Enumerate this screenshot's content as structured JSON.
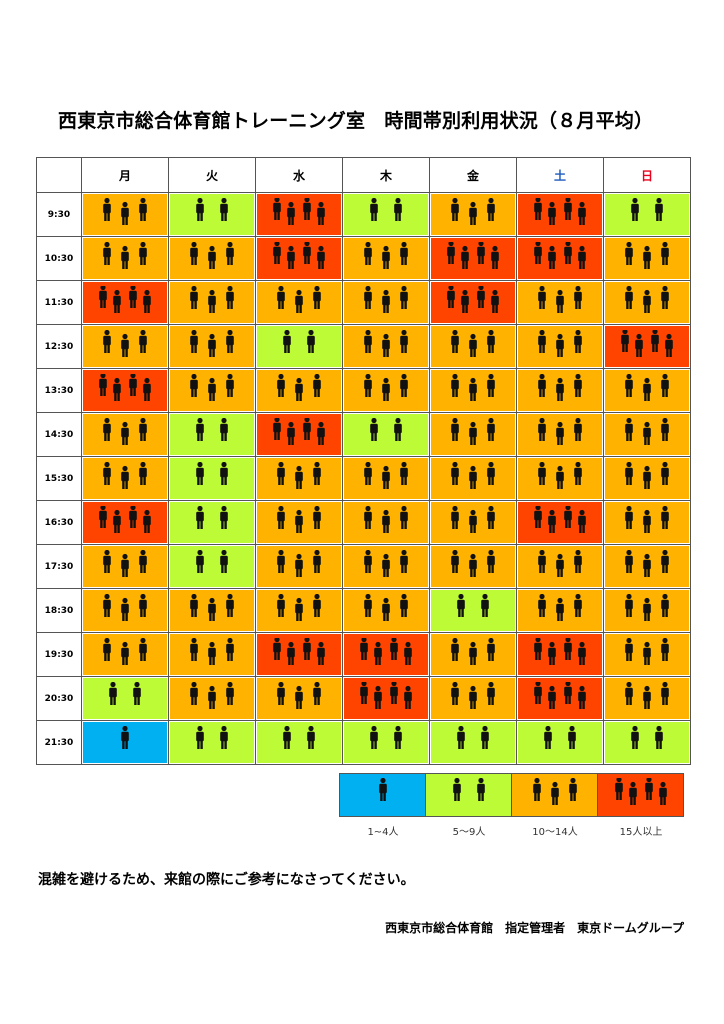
{
  "title": "西東京市総合体育館トレーニング室　時間帯別利用状況（８月平均）",
  "days": [
    {
      "label": "月"
    },
    {
      "label": "火"
    },
    {
      "label": "水"
    },
    {
      "label": "木"
    },
    {
      "label": "金"
    },
    {
      "label": "土",
      "color": "#1c5bbf"
    },
    {
      "label": "日",
      "color": "#e8001c"
    }
  ],
  "levels": [
    {
      "level": 1,
      "label": "1~4人",
      "color": "#00b0f0"
    },
    {
      "level": 2,
      "label": "5〜9人",
      "color": "#bdfb36"
    },
    {
      "level": 3,
      "label": "10〜14人",
      "color": "#ffb300"
    },
    {
      "level": 4,
      "label": "15人以上",
      "color": "#ff4400"
    }
  ],
  "rows": [
    {
      "time": "9:30",
      "levels": [
        3,
        2,
        4,
        2,
        3,
        4,
        2
      ]
    },
    {
      "time": "10:30",
      "levels": [
        3,
        3,
        4,
        3,
        4,
        4,
        3
      ]
    },
    {
      "time": "11:30",
      "levels": [
        4,
        3,
        3,
        3,
        4,
        3,
        3
      ]
    },
    {
      "time": "12:30",
      "levels": [
        3,
        3,
        2,
        3,
        3,
        3,
        4
      ]
    },
    {
      "time": "13:30",
      "levels": [
        4,
        3,
        3,
        3,
        3,
        3,
        3
      ]
    },
    {
      "time": "14:30",
      "levels": [
        3,
        2,
        4,
        2,
        3,
        3,
        3
      ]
    },
    {
      "time": "15:30",
      "levels": [
        3,
        2,
        3,
        3,
        3,
        3,
        3
      ]
    },
    {
      "time": "16:30",
      "levels": [
        4,
        2,
        3,
        3,
        3,
        4,
        3
      ]
    },
    {
      "time": "17:30",
      "levels": [
        3,
        2,
        3,
        3,
        3,
        3,
        3
      ]
    },
    {
      "time": "18:30",
      "levels": [
        3,
        3,
        3,
        3,
        2,
        3,
        3
      ]
    },
    {
      "time": "19:30",
      "levels": [
        3,
        3,
        4,
        4,
        3,
        4,
        3
      ]
    },
    {
      "time": "20:30",
      "levels": [
        2,
        3,
        3,
        4,
        3,
        4,
        3
      ]
    },
    {
      "time": "21:30",
      "levels": [
        1,
        2,
        2,
        2,
        2,
        2,
        2
      ]
    }
  ],
  "note": "混雑を避けるため、来館の際にご参考になさってください。",
  "footer": "西東京市総合体育館　指定管理者　東京ドームグループ",
  "icon": "person-icon"
}
